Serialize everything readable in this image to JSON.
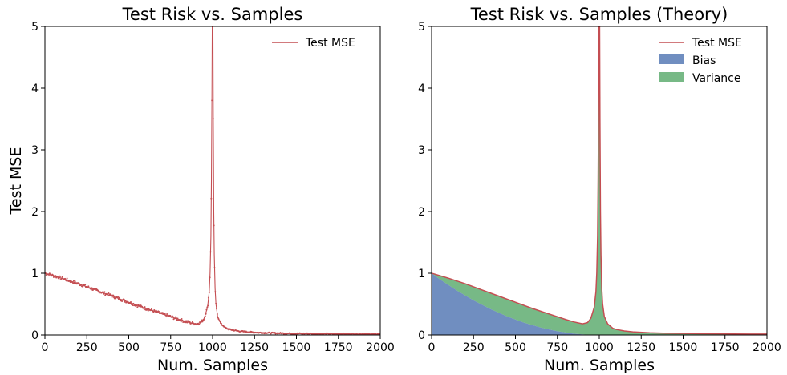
{
  "chart_data": [
    {
      "type": "scatter",
      "title": "Test Risk vs. Samples",
      "xlabel": "Num. Samples",
      "ylabel": "Test MSE",
      "xlim": [
        0,
        2000
      ],
      "ylim": [
        0,
        5
      ],
      "xticks": [
        0,
        250,
        500,
        750,
        1000,
        1250,
        1500,
        1750,
        2000
      ],
      "yticks": [
        0,
        1,
        2,
        3,
        4,
        5
      ],
      "legend": "top-right",
      "grid": false,
      "series": [
        {
          "name": "Test MSE",
          "kind": "line-with-markers",
          "color": "#c44e52",
          "x": [
            0,
            100,
            200,
            300,
            400,
            500,
            600,
            700,
            800,
            850,
            900,
            930,
            950,
            970,
            980,
            985,
            990,
            993,
            996,
            998,
            999,
            1000,
            1001,
            1002,
            1004,
            1007,
            1010,
            1015,
            1020,
            1030,
            1050,
            1080,
            1100,
            1150,
            1200,
            1300,
            1400,
            1500,
            1600,
            1700,
            1800,
            1900,
            2000
          ],
          "y": [
            1.0,
            0.92,
            0.83,
            0.73,
            0.63,
            0.53,
            0.43,
            0.34,
            0.25,
            0.21,
            0.18,
            0.2,
            0.27,
            0.45,
            0.7,
            1.0,
            1.6,
            2.5,
            3.8,
            5.0,
            5.0,
            5.0,
            5.0,
            5.0,
            3.5,
            2.0,
            1.3,
            0.75,
            0.5,
            0.3,
            0.18,
            0.11,
            0.09,
            0.065,
            0.05,
            0.035,
            0.028,
            0.024,
            0.021,
            0.019,
            0.017,
            0.015,
            0.014
          ]
        }
      ]
    },
    {
      "type": "area",
      "title": "Test Risk vs. Samples (Theory)",
      "xlabel": "Num. Samples",
      "ylabel": "",
      "xlim": [
        0,
        2000
      ],
      "ylim": [
        0,
        5
      ],
      "xticks": [
        0,
        250,
        500,
        750,
        1000,
        1250,
        1500,
        1750,
        2000
      ],
      "yticks": [
        0,
        1,
        2,
        3,
        4,
        5
      ],
      "legend": "top-right",
      "grid": false,
      "series": [
        {
          "name": "Test MSE",
          "kind": "line",
          "color": "#c44e52",
          "x": [
            0,
            100,
            200,
            300,
            400,
            500,
            600,
            700,
            800,
            850,
            900,
            930,
            950,
            970,
            980,
            985,
            990,
            993,
            996,
            998,
            999,
            1000,
            1001,
            1002,
            1004,
            1007,
            1010,
            1015,
            1020,
            1030,
            1050,
            1080,
            1100,
            1150,
            1200,
            1300,
            1400,
            1500,
            1600,
            1700,
            1800,
            1900,
            2000
          ],
          "y": [
            1.0,
            0.92,
            0.83,
            0.73,
            0.63,
            0.53,
            0.43,
            0.34,
            0.25,
            0.21,
            0.18,
            0.2,
            0.27,
            0.45,
            0.7,
            1.0,
            1.6,
            2.5,
            3.8,
            5.0,
            5.0,
            5.0,
            5.0,
            5.0,
            3.5,
            2.0,
            1.3,
            0.75,
            0.5,
            0.3,
            0.18,
            0.11,
            0.09,
            0.065,
            0.05,
            0.035,
            0.028,
            0.024,
            0.021,
            0.019,
            0.017,
            0.015,
            0.014
          ]
        },
        {
          "name": "Bias",
          "kind": "area",
          "color": "#4c72b0",
          "x": [
            0,
            50,
            100,
            150,
            200,
            250,
            300,
            350,
            400,
            450,
            500,
            550,
            600,
            650,
            700,
            750,
            800,
            850,
            900,
            950,
            1000,
            1100,
            1500,
            2000
          ],
          "y": [
            1.0,
            0.9,
            0.81,
            0.72,
            0.64,
            0.56,
            0.49,
            0.42,
            0.36,
            0.3,
            0.25,
            0.2,
            0.16,
            0.12,
            0.09,
            0.06,
            0.04,
            0.02,
            0.01,
            0.0,
            0.0,
            0.0,
            0.0,
            0.0
          ]
        },
        {
          "name": "Variance",
          "kind": "area-stacked",
          "color": "#55a868"
        }
      ]
    }
  ]
}
